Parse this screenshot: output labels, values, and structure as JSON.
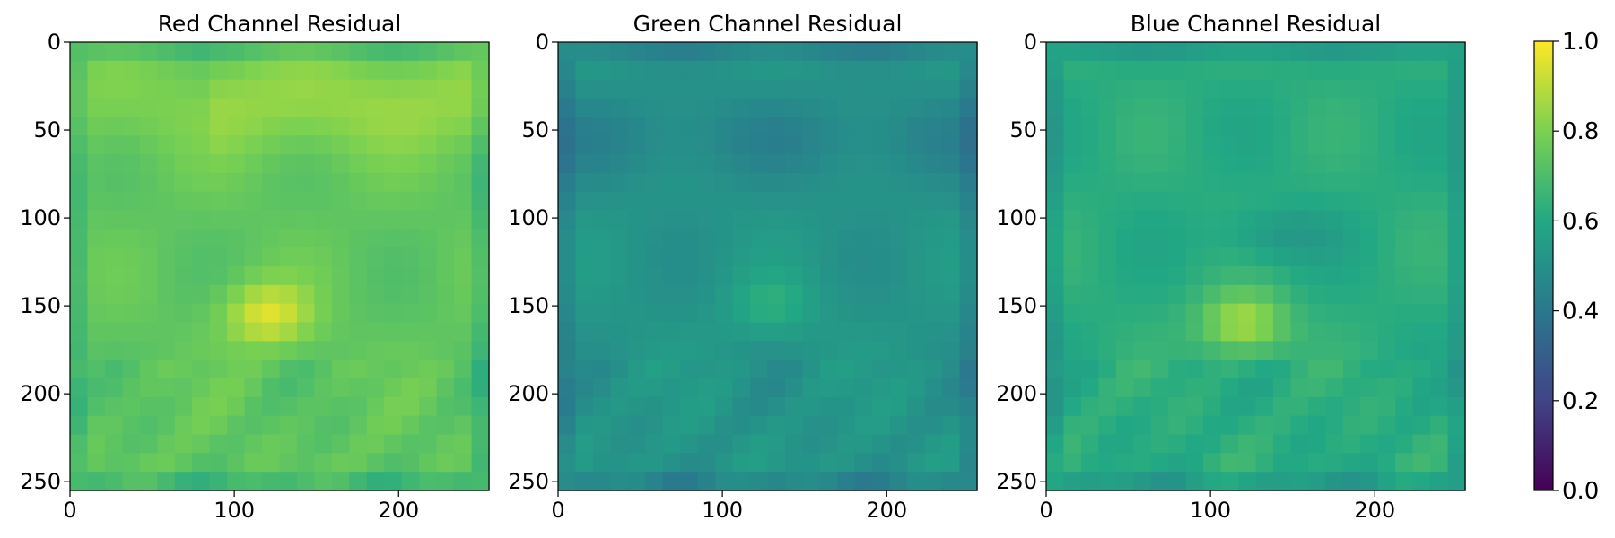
{
  "chart_data": [
    {
      "type": "heatmap",
      "title": "Red Channel Residual",
      "xlabel": "",
      "ylabel": "",
      "xlim": [
        0,
        255
      ],
      "ylim": [
        255,
        0
      ],
      "x_ticks": [
        0,
        100,
        200
      ],
      "y_ticks": [
        0,
        50,
        100,
        150,
        200,
        250
      ],
      "base_level": 0.74,
      "hotspot": {
        "x": 120,
        "y": 155,
        "value": 0.95
      }
    },
    {
      "type": "heatmap",
      "title": "Green Channel Residual",
      "xlabel": "",
      "ylabel": "",
      "xlim": [
        0,
        255
      ],
      "ylim": [
        255,
        0
      ],
      "x_ticks": [
        0,
        100,
        200
      ],
      "y_ticks": [
        0,
        50,
        100,
        150,
        200,
        250
      ],
      "base_level": 0.52,
      "hotspot": {
        "x": 130,
        "y": 150,
        "value": 0.62
      }
    },
    {
      "type": "heatmap",
      "title": "Blue Channel Residual",
      "xlabel": "",
      "ylabel": "",
      "xlim": [
        0,
        255
      ],
      "ylim": [
        255,
        0
      ],
      "x_ticks": [
        0,
        100,
        200
      ],
      "y_ticks": [
        0,
        50,
        100,
        150,
        200,
        250
      ],
      "base_level": 0.62,
      "hotspot": {
        "x": 120,
        "y": 160,
        "value": 0.88
      }
    }
  ],
  "colorbar": {
    "colormap": "viridis",
    "range": [
      0.0,
      1.0
    ],
    "tick_labels": [
      "0.0",
      "0.2",
      "0.4",
      "0.6",
      "0.8",
      "1.0"
    ],
    "colors": [
      "#440154",
      "#414487",
      "#2a788e",
      "#22a884",
      "#7ad151",
      "#fde725"
    ]
  }
}
